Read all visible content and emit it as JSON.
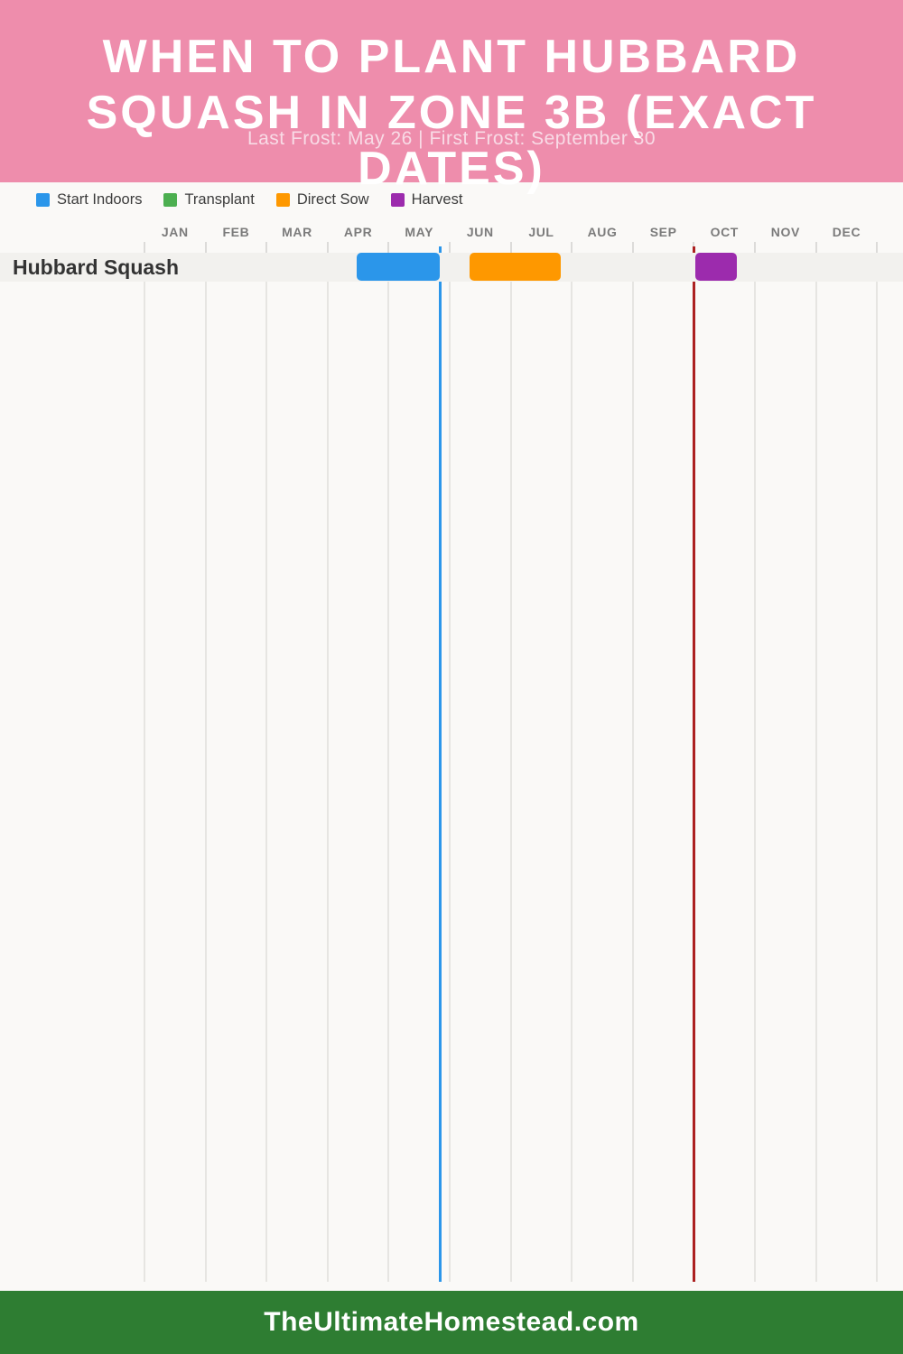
{
  "header": {
    "title_lines": [
      "WHEN TO PLANT HUBBARD",
      "SQUASH IN ZONE 3B (EXACT",
      "DATES)"
    ],
    "subtitle": "Last Frost: May 26 | First Frost: September 30",
    "background_color": "#ee8dac",
    "title_color": "#ffffff",
    "subtitle_color": "#f8dbe6"
  },
  "legend": {
    "items": [
      {
        "label": "Start Indoors",
        "color": "#2b96ea"
      },
      {
        "label": "Transplant",
        "color": "#4caf50"
      },
      {
        "label": "Direct Sow",
        "color": "#fe9800"
      },
      {
        "label": "Harvest",
        "color": "#9c2bad"
      }
    ]
  },
  "chart_data": {
    "type": "gantt-timeline",
    "title": "When to Plant Hubbard Squash in Zone 3B (Exact Dates)",
    "months": [
      "JAN",
      "FEB",
      "MAR",
      "APR",
      "MAY",
      "JUN",
      "JUL",
      "AUG",
      "SEP",
      "OCT",
      "NOV",
      "DEC"
    ],
    "axis_range_months": [
      0,
      12
    ],
    "grid": true,
    "rows": [
      {
        "name": "Hubbard Squash",
        "bars": [
          {
            "series": "Start Indoors",
            "color": "#2b96ea",
            "start_month": 3.47,
            "end_month": 4.84,
            "start_date_est": "Apr 14",
            "end_date_est": "May 26"
          },
          {
            "series": "Direct Sow",
            "color": "#fe9800",
            "start_month": 5.33,
            "end_month": 6.82,
            "start_date_est": "Jun 10",
            "end_date_est": "Jul 25"
          },
          {
            "series": "Harvest",
            "color": "#9c2bad",
            "start_month": 9.02,
            "end_month": 9.7,
            "start_date_est": "Oct 1",
            "end_date_est": "Oct 21"
          }
        ]
      }
    ],
    "frost_lines": [
      {
        "label": "Last Frost",
        "date": "May 26",
        "month": 4.845,
        "color": "#2b96ea"
      },
      {
        "label": "First Frost",
        "date": "September 30",
        "month": 8.995,
        "color": "#ac2121"
      }
    ]
  },
  "footer": {
    "site": "TheUltimateHomestead.com",
    "background_color": "#2e7d32"
  }
}
